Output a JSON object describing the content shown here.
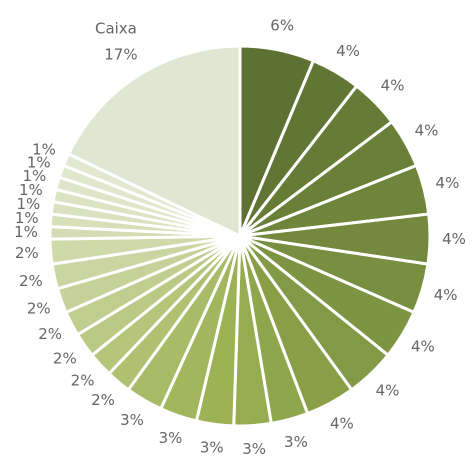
{
  "chart_data": {
    "type": "pie",
    "categories": [
      null,
      null,
      null,
      null,
      null,
      null,
      null,
      null,
      null,
      null,
      null,
      null,
      null,
      null,
      null,
      null,
      null,
      null,
      null,
      null,
      null,
      null,
      null,
      null,
      null,
      null,
      null,
      null,
      null,
      "Caixa"
    ],
    "values": [
      6,
      4,
      4,
      4,
      4,
      4,
      4,
      4,
      4,
      4,
      3,
      3,
      3,
      3,
      3,
      2,
      2,
      2,
      2,
      2,
      2,
      2,
      1,
      1,
      1,
      1,
      1,
      1,
      1,
      17
    ],
    "value_labels": [
      "6%",
      "4%",
      "4%",
      "4%",
      "4%",
      "4%",
      "4%",
      "4%",
      "4%",
      "4%",
      "3%",
      "3%",
      "3%",
      "3%",
      "3%",
      "2%",
      "2%",
      "2%",
      "2%",
      "2%",
      "2%",
      "2%",
      "1%",
      "1%",
      "1%",
      "1%",
      "1%",
      "1%",
      "1%",
      "17%"
    ],
    "colors": [
      "#5d7232",
      "#617634",
      "#657b36",
      "#6a8038",
      "#6f853b",
      "#74893d",
      "#788e40",
      "#7d9443",
      "#829946",
      "#889f48",
      "#8fa74c",
      "#95ad50",
      "#9bb355",
      "#a1b65d",
      "#a8bb66",
      "#afc070",
      "#b5c57a",
      "#bbc984",
      "#c0cd8e",
      "#c5d198",
      "#cad5a1",
      "#cfd9aa",
      "#d3dcb2",
      "#d6dfb8",
      "#d9e1be",
      "#dce3c3",
      "#dfe5c8",
      "#e1e7cc",
      "#e3e8d0",
      "#dfe7d2"
    ]
  }
}
